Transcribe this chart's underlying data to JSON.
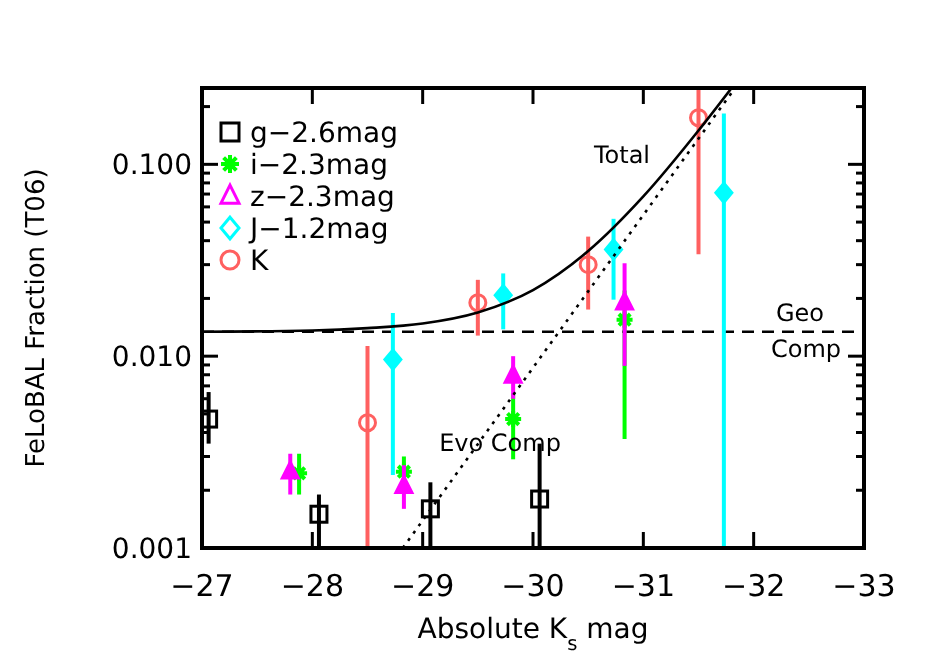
{
  "chart_data": {
    "type": "scatter",
    "xlabel": "Absolute K$_{s}$ mag",
    "ylabel": "FeLoBAL Fraction (T06)",
    "log": "y",
    "xlim": [
      -27,
      -33
    ],
    "xticks": [
      -27,
      -28,
      -29,
      -30,
      -31,
      -32,
      -33
    ],
    "ylim": [
      0.001,
      0.25
    ],
    "yticks": [
      {
        "value": 0.001,
        "label": "0.001"
      },
      {
        "value": 0.002,
        "label": null
      },
      {
        "value": 0.003,
        "label": null
      },
      {
        "value": 0.004,
        "label": null
      },
      {
        "value": 0.005,
        "label": null
      },
      {
        "value": 0.006,
        "label": null
      },
      {
        "value": 0.007,
        "label": null
      },
      {
        "value": 0.008,
        "label": null
      },
      {
        "value": 0.009,
        "label": null
      },
      {
        "value": 0.01,
        "label": "0.010"
      },
      {
        "value": 0.02,
        "label": null
      },
      {
        "value": 0.03,
        "label": null
      },
      {
        "value": 0.04,
        "label": null
      },
      {
        "value": 0.05,
        "label": null
      },
      {
        "value": 0.06,
        "label": null
      },
      {
        "value": 0.07,
        "label": null
      },
      {
        "value": 0.08,
        "label": null
      },
      {
        "value": 0.09,
        "label": null
      },
      {
        "value": 0.1,
        "label": "0.100"
      },
      {
        "value": 0.2,
        "label": null
      }
    ],
    "legend": "top left",
    "series": [
      {
        "name": "g−2.6mag",
        "color": "#000000",
        "marker": "square",
        "x": [
          -27.06,
          -28.06,
          -29.07,
          -30.06
        ],
        "values": [
          0.0047,
          0.0015,
          0.0016,
          0.0018
        ],
        "errors": [
          [
            0.0035,
            0.0065
          ],
          [
            0.001,
            0.0019
          ],
          [
            0.001,
            0.0022
          ],
          [
            0.001,
            0.0035
          ]
        ]
      },
      {
        "name": "i−2.3mag",
        "color": "#00ff00",
        "marker": "cross",
        "x": [
          -27.88,
          -28.83,
          -29.82,
          -30.83
        ],
        "values": [
          0.00245,
          0.0025,
          0.0047,
          0.0155
        ],
        "errors": [
          [
            0.0019,
            0.0031
          ],
          [
            0.002,
            0.003
          ],
          [
            0.0029,
            0.0064
          ],
          [
            0.0037,
            0.022
          ]
        ]
      },
      {
        "name": "z−2.3mag",
        "color": "#ff00ff",
        "marker": "triangle",
        "x": [
          -27.8,
          -28.83,
          -29.82,
          -30.83
        ],
        "values": [
          0.0025,
          0.0021,
          0.0079,
          0.019
        ],
        "errors": [
          [
            0.0019,
            0.0031
          ],
          [
            0.0016,
            0.0027
          ],
          [
            0.006,
            0.01
          ],
          [
            0.0089,
            0.0305
          ]
        ]
      },
      {
        "name": "J−1.2mag",
        "color": "#00ffff",
        "marker": "diamond",
        "x": [
          -28.73,
          -29.73,
          -30.73,
          -31.73
        ],
        "values": [
          0.0096,
          0.0208,
          0.036,
          0.071
        ],
        "errors": [
          [
            0.0024,
            0.0168
          ],
          [
            0.0138,
            0.027
          ],
          [
            0.0197,
            0.052
          ],
          [
            0.001,
            0.184
          ]
        ]
      },
      {
        "name": "K",
        "color": "#ff6060",
        "marker": "circle",
        "x": [
          -28.5,
          -29.5,
          -30.5,
          -31.5
        ],
        "values": [
          0.0045,
          0.019,
          0.03,
          0.175
        ],
        "errors": [
          [
            0.001,
            0.0113
          ],
          [
            0.0128,
            0.025
          ],
          [
            0.0175,
            0.042
          ],
          [
            0.034,
            0.25
          ]
        ]
      },
      {
        "type": "line",
        "color": "#000000",
        "line_style": "dotted",
        "x": [
          -28.82,
          -31.82
        ],
        "values": [
          0.001,
          0.245
        ]
      },
      {
        "type": "line",
        "color": "#000000",
        "line_style": "solid",
        "x": [
          -27,
          -28,
          -28.5,
          -29,
          -29.5,
          -30,
          -30.5,
          -31,
          -31.5,
          -31.8
        ],
        "values": [
          0.0134,
          0.0136,
          0.014,
          0.0148,
          0.0169,
          0.0221,
          0.0353,
          0.068,
          0.15,
          0.25
        ]
      }
    ],
    "ref_lines": [
      {
        "axis": "y",
        "value": 0.0134,
        "line_style": "dashed",
        "color": "#000000"
      }
    ],
    "annotations": [
      "Total",
      "Evo Comp",
      "Geo",
      "Comp"
    ]
  }
}
